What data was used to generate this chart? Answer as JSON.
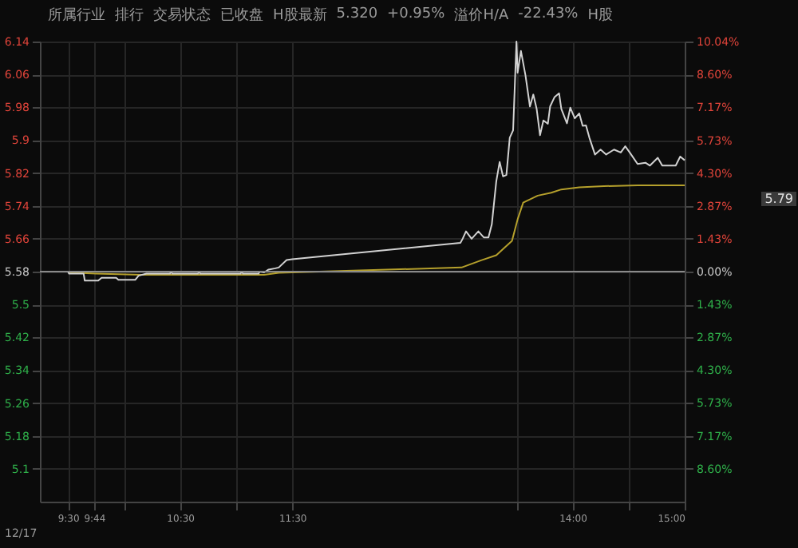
{
  "chart_data": {
    "type": "line",
    "annotations": [
      "12/17",
      "所属行业",
      "排行",
      "交易状态",
      "已收盘",
      "H股最新",
      "5.320",
      "+0.95%",
      "溢价H/A",
      "-22.43%",
      "H股",
      "5.79"
    ],
    "xlim": [
      9.25,
      15
    ],
    "xticks": [
      {
        "value": 9.5,
        "label": "9:30"
      },
      {
        "value": 9.7333,
        "label": "9:44"
      },
      {
        "value": 10,
        "label": null
      },
      {
        "value": 10.5,
        "label": "10:30"
      },
      {
        "value": 11,
        "label": null
      },
      {
        "value": 11.5,
        "label": "11:30"
      },
      {
        "value": 13.5,
        "label": null
      },
      {
        "value": 14,
        "label": "14:00"
      },
      {
        "value": 14.5,
        "label": null
      },
      {
        "value": 15,
        "label": "15:00"
      }
    ],
    "ylim": [
      5.02,
      6.14
    ],
    "yticks": [
      6.14,
      6.06,
      5.98,
      5.9,
      5.82,
      5.74,
      5.66,
      5.58,
      5.5,
      5.42,
      5.34,
      5.26,
      5.18,
      5.1
    ],
    "y2lim": [
      -10.04,
      10.04
    ],
    "y2ticks": [
      {
        "value": 10.04,
        "label": "10.04%"
      },
      {
        "value": 8.6,
        "label": "8.60%"
      },
      {
        "value": 7.17,
        "label": "7.17%"
      },
      {
        "value": 5.73,
        "label": "5.73%"
      },
      {
        "value": 4.3,
        "label": "4.30%"
      },
      {
        "value": 2.87,
        "label": "2.87%"
      },
      {
        "value": 1.43,
        "label": "1.43%"
      },
      {
        "value": 0,
        "label": "0.00%"
      },
      {
        "value": -1.43,
        "label": "1.43%"
      },
      {
        "value": -2.87,
        "label": "2.87%"
      },
      {
        "value": -4.3,
        "label": "4.30%"
      },
      {
        "value": -5.73,
        "label": "5.73%"
      },
      {
        "value": -7.17,
        "label": "7.17%"
      },
      {
        "value": -8.6,
        "label": "8.60%"
      }
    ],
    "ref_lines": [
      {
        "axis": "y2",
        "value": 0,
        "color": "#8a8a8a"
      }
    ],
    "grid": true,
    "marker": "none",
    "line_style": "solid",
    "series": [
      {
        "color": "#b5a02c",
        "x": [
          9.5,
          9.75,
          10.15,
          11.25,
          11.38,
          13.01,
          13.19,
          13.32,
          13.46,
          13.51,
          13.56,
          13.69,
          13.81,
          13.9,
          14.06,
          14.28,
          14.58,
          15.0
        ],
        "values": [
          5.578,
          5.575,
          5.572,
          5.572,
          5.577,
          5.59,
          5.608,
          5.62,
          5.655,
          5.707,
          5.748,
          5.765,
          5.772,
          5.78,
          5.785,
          5.788,
          5.79,
          5.79
        ]
      },
      {
        "color": "#d2d2d2",
        "x": [
          9.25,
          9.5,
          9.51,
          9.64,
          9.65,
          9.77,
          9.8,
          9.93,
          9.95,
          10.1,
          10.13,
          10.2,
          10.41,
          10.42,
          10.43,
          10.66,
          10.67,
          10.68,
          11.04,
          11.05,
          11.06,
          11.2,
          11.21,
          11.25,
          11.29,
          11.35,
          11.38,
          11.45,
          11.5,
          13.0,
          13.02,
          13.05,
          13.1,
          13.16,
          13.21,
          13.25,
          13.28,
          13.32,
          13.35,
          13.38,
          13.41,
          13.44,
          13.47,
          13.5,
          13.51,
          13.54,
          13.58,
          13.62,
          13.65,
          13.68,
          13.71,
          13.74,
          13.78,
          13.8,
          13.84,
          13.88,
          13.9,
          13.95,
          13.98,
          14.02,
          14.06,
          14.09,
          14.12,
          14.15,
          14.2,
          14.25,
          14.3,
          14.37,
          14.43,
          14.47,
          14.51,
          14.58,
          14.65,
          14.69,
          14.76,
          14.8,
          14.92,
          14.96,
          15.0
        ],
        "values": [
          5.58,
          5.58,
          5.575,
          5.575,
          5.558,
          5.558,
          5.565,
          5.565,
          5.56,
          5.56,
          5.57,
          5.575,
          5.575,
          5.58,
          5.575,
          5.575,
          5.58,
          5.575,
          5.575,
          5.58,
          5.575,
          5.575,
          5.58,
          5.578,
          5.585,
          5.588,
          5.59,
          5.608,
          5.61,
          5.65,
          5.66,
          5.678,
          5.66,
          5.678,
          5.663,
          5.663,
          5.695,
          5.8,
          5.847,
          5.812,
          5.815,
          5.906,
          5.924,
          6.14,
          6.064,
          6.117,
          6.058,
          5.982,
          6.011,
          5.976,
          5.912,
          5.948,
          5.94,
          5.982,
          6.005,
          6.014,
          5.976,
          5.941,
          5.979,
          5.953,
          5.965,
          5.935,
          5.936,
          5.906,
          5.865,
          5.877,
          5.865,
          5.877,
          5.87,
          5.885,
          5.87,
          5.842,
          5.845,
          5.838,
          5.857,
          5.838,
          5.838,
          5.86,
          5.851
        ]
      }
    ]
  }
}
